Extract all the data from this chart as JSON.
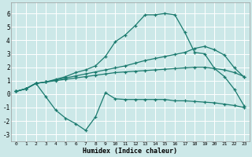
{
  "xlabel": "Humidex (Indice chaleur)",
  "bg_color": "#cce8e8",
  "grid_color": "#ffffff",
  "line_color": "#1a7a6e",
  "xlim": [
    -0.5,
    23.5
  ],
  "ylim": [
    -3.5,
    6.8
  ],
  "xticks": [
    0,
    1,
    2,
    3,
    4,
    5,
    6,
    7,
    8,
    9,
    10,
    11,
    12,
    13,
    14,
    15,
    16,
    17,
    18,
    19,
    20,
    21,
    22,
    23
  ],
  "yticks": [
    -3,
    -2,
    -1,
    0,
    1,
    2,
    3,
    4,
    5,
    6
  ],
  "line_top_x": [
    0,
    1,
    2,
    3,
    4,
    5,
    6,
    7,
    8,
    9,
    10,
    11,
    12,
    13,
    14,
    15,
    16,
    17,
    18,
    19,
    20,
    21,
    22,
    23
  ],
  "line_top_y": [
    0.2,
    0.4,
    0.8,
    0.9,
    1.1,
    1.3,
    1.6,
    1.8,
    2.1,
    2.8,
    3.9,
    4.4,
    5.1,
    5.9,
    5.9,
    6.0,
    5.9,
    4.6,
    3.1,
    3.0,
    1.9,
    1.3,
    0.35,
    -0.9
  ],
  "line_mid_upper_x": [
    0,
    1,
    2,
    3,
    4,
    5,
    6,
    7,
    8,
    9,
    10,
    11,
    12,
    13,
    14,
    15,
    16,
    17,
    18,
    19,
    20,
    21,
    22,
    23
  ],
  "line_mid_upper_y": [
    0.2,
    0.4,
    0.8,
    0.9,
    1.05,
    1.2,
    1.35,
    1.5,
    1.65,
    1.8,
    1.95,
    2.1,
    2.3,
    2.5,
    2.65,
    2.8,
    2.95,
    3.1,
    3.4,
    3.55,
    3.3,
    2.9,
    1.95,
    1.25
  ],
  "line_mid_lower_x": [
    0,
    1,
    2,
    3,
    4,
    5,
    6,
    7,
    8,
    9,
    10,
    11,
    12,
    13,
    14,
    15,
    16,
    17,
    18,
    19,
    20,
    21,
    22,
    23
  ],
  "line_mid_lower_y": [
    0.2,
    0.4,
    0.8,
    0.9,
    1.0,
    1.1,
    1.2,
    1.3,
    1.4,
    1.5,
    1.6,
    1.65,
    1.7,
    1.75,
    1.8,
    1.85,
    1.9,
    1.95,
    2.0,
    2.0,
    1.9,
    1.8,
    1.6,
    1.3
  ],
  "line_bot_x": [
    0,
    1,
    2,
    3,
    4,
    5,
    6,
    7,
    8,
    9,
    10,
    11,
    12,
    13,
    14,
    15,
    16,
    17,
    18,
    19,
    20,
    21,
    22,
    23
  ],
  "line_bot_y": [
    0.2,
    0.4,
    0.8,
    -0.2,
    -1.2,
    -1.8,
    -2.2,
    -2.7,
    -1.7,
    0.1,
    -0.35,
    -0.4,
    -0.4,
    -0.4,
    -0.4,
    -0.4,
    -0.5,
    -0.5,
    -0.55,
    -0.6,
    -0.65,
    -0.75,
    -0.85,
    -1.0
  ]
}
